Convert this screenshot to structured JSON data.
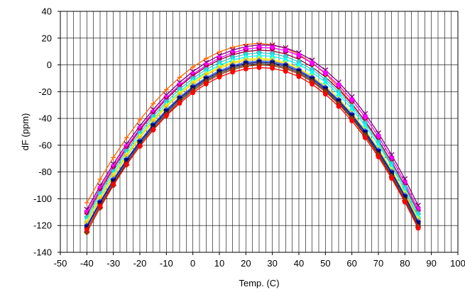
{
  "chart_data": {
    "type": "line",
    "title": "",
    "xlabel": "Temp. (C)",
    "ylabel": "dF (ppm)",
    "xlim": [
      -50,
      100
    ],
    "ylim": [
      -140,
      40
    ],
    "xticks": [
      -50,
      -40,
      -30,
      -20,
      -10,
      0,
      10,
      20,
      30,
      40,
      50,
      60,
      70,
      80,
      90,
      100
    ],
    "yticks": [
      -140,
      -120,
      -100,
      -80,
      -60,
      -40,
      -20,
      0,
      20,
      40
    ],
    "x_gridlines": "minor, every 2.5",
    "y_gridlines": "major, every 20",
    "legend": "none",
    "x": [
      -40,
      -35,
      -30,
      -25,
      -20,
      -15,
      -10,
      -5,
      0,
      5,
      10,
      15,
      20,
      25,
      30,
      35,
      40,
      45,
      50,
      55,
      60,
      65,
      70,
      75,
      80,
      85
    ],
    "series": [
      {
        "color": "#FF6600",
        "marker": "cross",
        "vertex_x": 25,
        "peak": 16,
        "values_at_ends": [
          -103,
          -115
        ]
      },
      {
        "color": "#7F007F",
        "marker": "x",
        "vertex_x": 27,
        "peak": 15,
        "values_at_ends": [
          -108,
          -105
        ]
      },
      {
        "color": "#FF00FF",
        "marker": "square",
        "vertex_x": 27,
        "peak": 13,
        "values_at_ends": [
          -110,
          -108
        ]
      },
      {
        "color": "#990033",
        "marker": "x",
        "vertex_x": 26,
        "peak": 11,
        "values_at_ends": [
          -112,
          -110
        ]
      },
      {
        "color": "#33CCCC",
        "marker": "circle",
        "vertex_x": 26,
        "peak": 9,
        "values_at_ends": [
          -114,
          -111
        ]
      },
      {
        "color": "#00FFFF",
        "marker": "triangle",
        "vertex_x": 26,
        "peak": 7,
        "values_at_ends": [
          -116,
          -113
        ]
      },
      {
        "color": "#FFFF00",
        "marker": "triangle",
        "vertex_x": 25,
        "peak": 5,
        "values_at_ends": [
          -117,
          -115
        ]
      },
      {
        "color": "#FFCC00",
        "marker": "circle",
        "vertex_x": 25,
        "peak": 4,
        "values_at_ends": [
          -118,
          -116
        ]
      },
      {
        "color": "#3366FF",
        "marker": "diamond",
        "vertex_x": 26,
        "peak": 3,
        "values_at_ends": [
          -120,
          -117
        ]
      },
      {
        "color": "#000080",
        "marker": "square",
        "vertex_x": 26,
        "peak": 2,
        "values_at_ends": [
          -121,
          -118
        ]
      },
      {
        "color": "#333333",
        "marker": "x",
        "vertex_x": 26,
        "peak": 1,
        "values_at_ends": [
          -123,
          -120
        ]
      },
      {
        "color": "#993300",
        "marker": "diamond",
        "vertex_x": 26,
        "peak": 0,
        "values_at_ends": [
          -125,
          -121
        ]
      },
      {
        "color": "#FF0000",
        "marker": "circle",
        "vertex_x": 26,
        "peak": -2,
        "values_at_ends": [
          -123,
          -122
        ]
      }
    ]
  }
}
